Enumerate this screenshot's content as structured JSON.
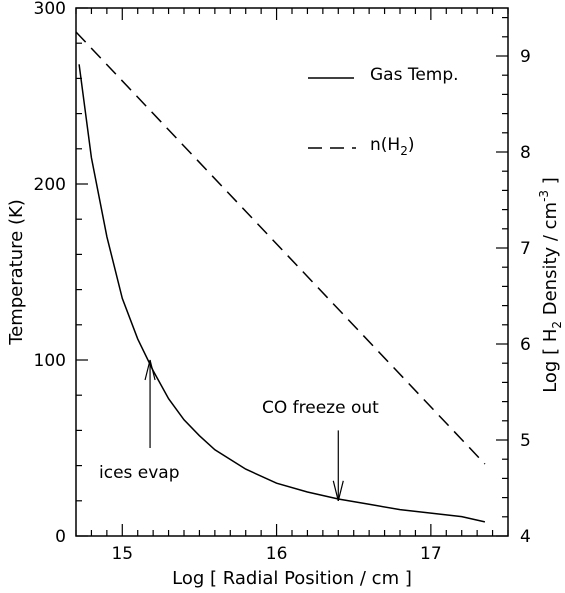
{
  "chart_data": {
    "type": "line",
    "xlabel": "Log [ Radial Position / cm ]",
    "ylabel_left": "Temperature (K)",
    "ylabel_right_parts": [
      "Log [ H",
      "2",
      " Density / cm",
      "-3",
      " ]"
    ],
    "xlim": [
      14.7,
      17.5
    ],
    "ylim_left": [
      0,
      300
    ],
    "ylim_right": [
      4,
      9.5
    ],
    "x_ticks": [
      "15",
      "16",
      "17"
    ],
    "y_ticks_left": [
      "0",
      "100",
      "200",
      "300"
    ],
    "y_ticks_right": [
      "4",
      "5",
      "6",
      "7",
      "8",
      "9"
    ],
    "grid": false,
    "legend_position": "top-right",
    "series": [
      {
        "name": "Gas Temp.",
        "axis": "left",
        "style": "solid",
        "x": [
          14.72,
          14.8,
          14.9,
          15.0,
          15.1,
          15.2,
          15.3,
          15.4,
          15.5,
          15.6,
          15.8,
          16.0,
          16.2,
          16.4,
          16.6,
          16.8,
          17.0,
          17.2,
          17.35
        ],
        "y": [
          268,
          215,
          170,
          135,
          112,
          94,
          78,
          66,
          57,
          49,
          38,
          30,
          25,
          21,
          18,
          15,
          13,
          11,
          8
        ]
      },
      {
        "name": "n(H2)",
        "legend_parts": [
          "n(H",
          "2",
          ")"
        ],
        "axis": "right",
        "style": "dashed",
        "x": [
          14.7,
          17.35
        ],
        "y": [
          9.25,
          4.75
        ]
      }
    ],
    "annotations": [
      {
        "text": "ices evap",
        "x": 15.18,
        "y_tip": 100,
        "y_tail": 50
      },
      {
        "text": "CO freeze out",
        "x": 16.4,
        "y_tip": 20,
        "y_tail": 60
      }
    ]
  }
}
